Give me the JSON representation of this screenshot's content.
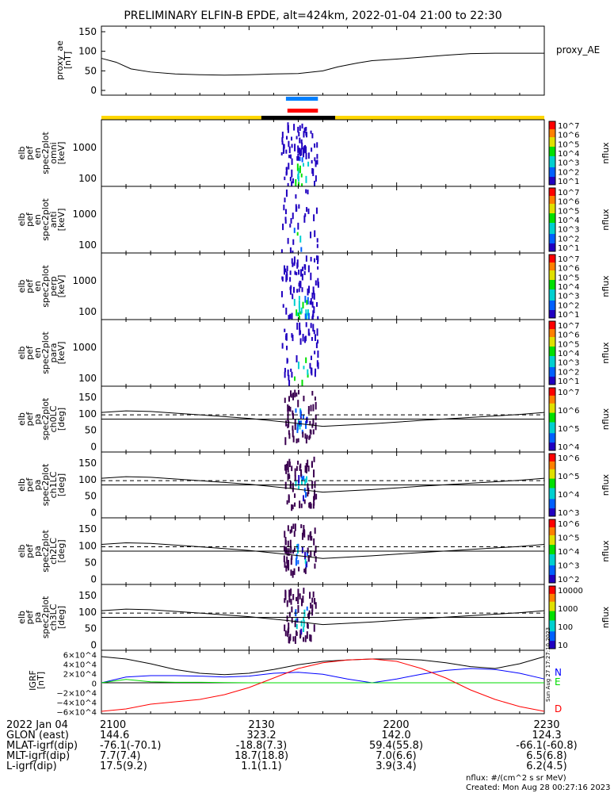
{
  "chart_data": {
    "type": "line",
    "title": "PRELIMINARY ELFIN-B EPDE, alt=424km, 2022-01-04 21:00 to 22:30",
    "time_axis": {
      "start_min": 0,
      "end_min": 90,
      "labels": [
        "2100",
        "2130",
        "2200",
        "2230"
      ],
      "date_label": "2022 Jan 04"
    },
    "proxy_ae": {
      "ylabel": "proxy_ae [nT]",
      "legend": "proxy_AE",
      "ylim": [
        0,
        150
      ],
      "ticks": [
        "0",
        "50",
        "100",
        "150"
      ],
      "x_min": [
        0,
        3,
        6,
        10,
        15,
        20,
        25,
        30,
        35,
        40,
        45,
        48,
        52,
        55,
        60,
        65,
        70,
        75,
        80,
        90
      ],
      "values": [
        82,
        72,
        55,
        47,
        42,
        40,
        39,
        40,
        42,
        43,
        50,
        60,
        70,
        76,
        80,
        85,
        90,
        94,
        95,
        95
      ]
    },
    "bars": {
      "blue_min": [
        37.5,
        44
      ],
      "red_min": [
        37.8,
        44
      ],
      "black_min": [
        32.5,
        47.5
      ]
    },
    "spectrograms": [
      {
        "label": [
          "elb",
          "pef",
          "en",
          "spec2plot",
          "omni",
          "[keV]"
        ],
        "ticks": [
          "100",
          "1000"
        ],
        "cbar": [
          "10^7",
          "10^6",
          "10^5",
          "10^4",
          "10^3",
          "10^2",
          "10^1"
        ],
        "cbar_label": "nflux",
        "intensity": 1.0
      },
      {
        "label": [
          "elb",
          "pef",
          "en",
          "spec2plot",
          "anti",
          "[keV]"
        ],
        "ticks": [
          "100",
          "1000"
        ],
        "cbar": [
          "10^7",
          "10^6",
          "10^5",
          "10^4",
          "10^3",
          "10^2",
          "10^1"
        ],
        "cbar_label": "nflux",
        "intensity": 0.4
      },
      {
        "label": [
          "elb",
          "pef",
          "en",
          "spec2plot",
          "perp",
          "[keV]"
        ],
        "ticks": [
          "100",
          "1000"
        ],
        "cbar": [
          "10^7",
          "10^6",
          "10^5",
          "10^4",
          "10^3",
          "10^2",
          "10^1"
        ],
        "cbar_label": "nflux",
        "intensity": 1.0
      },
      {
        "label": [
          "elb",
          "pef",
          "en",
          "spec2plot",
          "para",
          "[keV]"
        ],
        "ticks": [
          "100",
          "1000"
        ],
        "cbar": [
          "10^7",
          "10^6",
          "10^5",
          "10^4",
          "10^3",
          "10^2",
          "10^1"
        ],
        "cbar_label": "nflux",
        "intensity": 0.6
      }
    ],
    "pitch_angle": [
      {
        "label": [
          "elb",
          "pef",
          "pa",
          "spec2plot",
          "ch0LC",
          "[deg]"
        ],
        "ticks": [
          "0",
          "50",
          "100",
          "150"
        ],
        "cbar": [
          "10^7",
          "10^6",
          "10^5",
          "10^4"
        ],
        "cbar_label": "nflux"
      },
      {
        "label": [
          "elb",
          "pef",
          "pa",
          "spec2plot",
          "ch1LC",
          "[deg]"
        ],
        "ticks": [
          "0",
          "50",
          "100",
          "150"
        ],
        "cbar": [
          "10^6",
          "10^5",
          "10^4",
          "10^3"
        ],
        "cbar_label": "nflux"
      },
      {
        "label": [
          "elb",
          "pef",
          "pa",
          "spec2plot",
          "ch2LC",
          "[deg]"
        ],
        "ticks": [
          "0",
          "50",
          "100",
          "150"
        ],
        "cbar": [
          "10^6",
          "10^5",
          "10^4",
          "10^3",
          "10^2"
        ],
        "cbar_label": "nflux"
      },
      {
        "label": [
          "elb",
          "pef",
          "pa",
          "spec2plot",
          "ch3LC",
          "[deg]"
        ],
        "ticks": [
          "0",
          "50",
          "100",
          "150"
        ],
        "cbar": [
          "10000",
          "1000",
          "100",
          "10"
        ],
        "cbar_label": "nflux"
      }
    ],
    "pa_lines": {
      "x_min": [
        0,
        5,
        10,
        20,
        30,
        38,
        45,
        55,
        65,
        75,
        85,
        90
      ],
      "loss_cone": [
        110,
        115,
        113,
        103,
        92,
        80,
        68,
        76,
        86,
        95,
        104,
        110
      ],
      "dashed": 103,
      "solid": 90,
      "ylim": [
        0,
        180
      ]
    },
    "igrf": {
      "ylabel": "IGRF [nT]",
      "ylim": [
        -70000,
        70000
      ],
      "ticks": [
        "6×10^4",
        "4×10^4",
        "2×10^4",
        "0",
        "−2×10^4",
        "−4×10^4",
        "−6×10^4"
      ],
      "x_min": [
        0,
        5,
        10,
        15,
        20,
        25,
        30,
        35,
        40,
        45,
        50,
        55,
        60,
        65,
        70,
        75,
        80,
        85,
        90
      ],
      "series": [
        {
          "name": "total",
          "color": "#000000",
          "values": [
            55000,
            50000,
            40000,
            28000,
            20000,
            17000,
            20000,
            28000,
            38000,
            45000,
            48000,
            50000,
            50000,
            48000,
            42000,
            34000,
            30000,
            40000,
            55000
          ]
        },
        {
          "name": "N",
          "color": "#0000ff",
          "values": [
            0,
            12000,
            15000,
            15000,
            14000,
            12000,
            14000,
            20000,
            22000,
            18000,
            8000,
            0,
            8000,
            18000,
            26000,
            30000,
            28000,
            20000,
            8000
          ]
        },
        {
          "name": "E",
          "color": "#00dd00",
          "values": [
            0,
            7000,
            2000,
            1000,
            1000,
            500,
            0,
            0,
            0,
            0,
            0,
            0,
            0,
            0,
            0,
            0,
            0,
            0,
            0
          ]
        },
        {
          "name": "D",
          "color": "#ff0000",
          "values": [
            -60000,
            -55000,
            -45000,
            -40000,
            -35000,
            -25000,
            -10000,
            10000,
            30000,
            42000,
            48000,
            50000,
            45000,
            30000,
            10000,
            -15000,
            -35000,
            -50000,
            -60000
          ]
        }
      ],
      "legend": [
        "N",
        "E",
        "D"
      ],
      "side_label": "Sun Aug 27 17:27:10 2023"
    }
  },
  "footer": {
    "rows": [
      [
        "2022 Jan 04",
        "2100",
        "2130",
        "2200",
        "2230"
      ],
      [
        "GLON (east)",
        "144.6",
        "323.2",
        "142.0",
        "124.3"
      ],
      [
        "MLAT-igrf(dip)",
        "-76.1(-70.1)",
        "-18.8(7.3)",
        "59.4(55.8)",
        "-66.1(-60.8)"
      ],
      [
        "MLT-igrf(dip)",
        "7.7(7.4)",
        "18.7(18.8)",
        "7.0(6.6)",
        "6.5(6.8)"
      ],
      [
        "L-igrf(dip)",
        "17.5(9.2)",
        "1.1(1.1)",
        "3.9(3.4)",
        "6.2(4.5)"
      ]
    ],
    "units": "nflux: #/(cm^2 s sr MeV)",
    "created": "Created: Mon Aug 28 00:27:16 2023"
  }
}
